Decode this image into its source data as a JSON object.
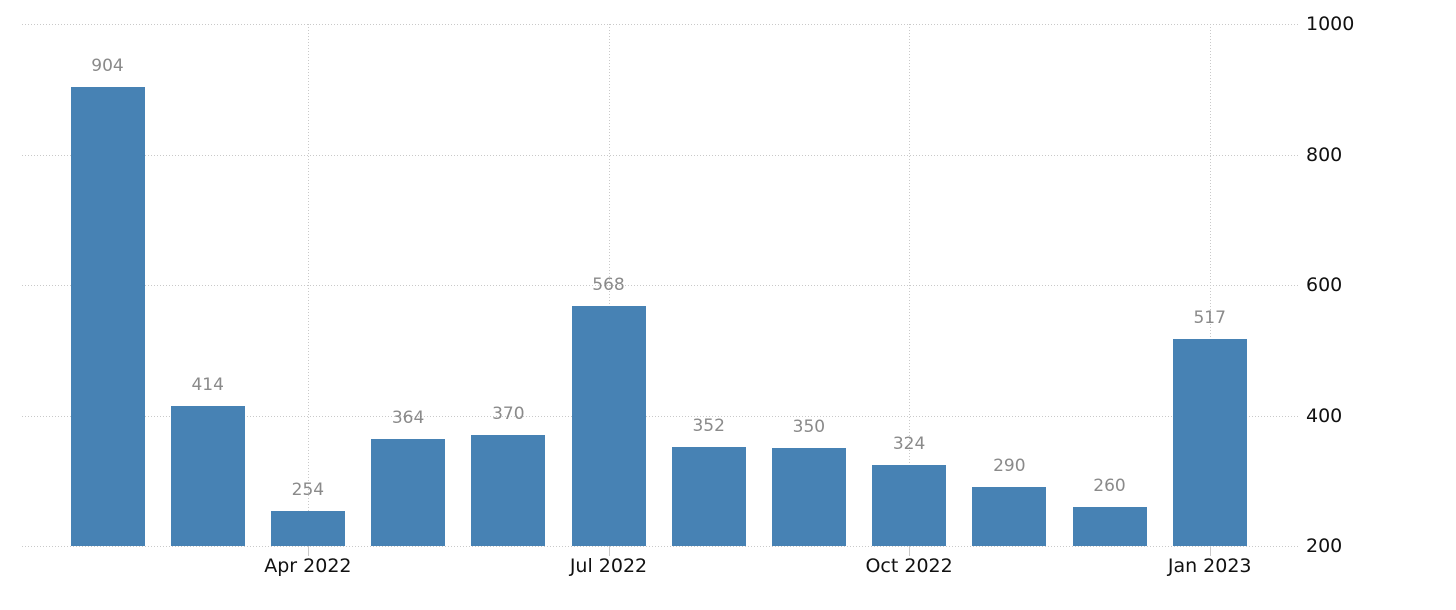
{
  "chart_data": {
    "type": "bar",
    "title": "",
    "xlabel": "",
    "ylabel": "",
    "values": [
      904,
      414,
      254,
      364,
      370,
      568,
      352,
      350,
      324,
      290,
      260,
      517
    ],
    "value_labels": [
      "904",
      "414",
      "254",
      "364",
      "370",
      "568",
      "352",
      "350",
      "324",
      "290",
      "260",
      "517"
    ],
    "x_ticks": [
      {
        "index": 2,
        "label": "Apr 2022"
      },
      {
        "index": 5,
        "label": "Jul 2022"
      },
      {
        "index": 8,
        "label": "Oct 2022"
      },
      {
        "index": 11,
        "label": "Jan 2023"
      }
    ],
    "y_ticks": [
      200,
      400,
      600,
      800,
      1000
    ],
    "ylim": [
      200,
      1000
    ],
    "y_axis_side": "right",
    "grid": "dotted",
    "legend": "none",
    "colors": {
      "bar": "#4782b4",
      "value_label": "#8a8a8a",
      "axis_label": "#111111",
      "gridline": "#c9c9c9",
      "background": "#ffffff"
    }
  }
}
